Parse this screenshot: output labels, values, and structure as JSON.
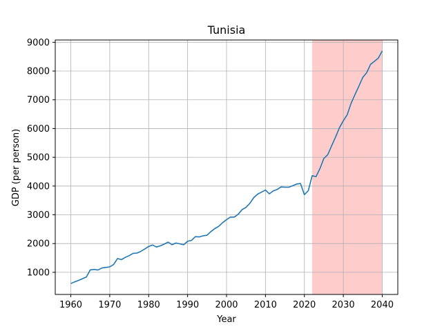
{
  "chart_data": {
    "type": "line",
    "title": "Tunisia",
    "xlabel": "Year",
    "ylabel": "GDP (per person)",
    "xlim": [
      1956,
      2044
    ],
    "ylim": [
      230,
      9080
    ],
    "xticks": [
      1960,
      1970,
      1980,
      1990,
      2000,
      2010,
      2020,
      2030,
      2040
    ],
    "yticks": [
      1000,
      2000,
      3000,
      4000,
      5000,
      6000,
      7000,
      8000,
      9000
    ],
    "grid": true,
    "line_color": "#1f77b4",
    "highlight": {
      "x_start": 2022,
      "x_end": 2040,
      "color": "#ffcccc"
    },
    "series": [
      {
        "x": [
          1960,
          1961,
          1962,
          1963,
          1964,
          1965,
          1966,
          1967,
          1968,
          1969,
          1970,
          1971,
          1972,
          1973,
          1974,
          1975,
          1976,
          1977,
          1978,
          1979,
          1980,
          1981,
          1982,
          1983,
          1984,
          1985,
          1986,
          1987,
          1988,
          1989,
          1990,
          1991,
          1992,
          1993,
          1994,
          1995,
          1996,
          1997,
          1998,
          1999,
          2000,
          2001,
          2002,
          2003,
          2004,
          2005,
          2006,
          2007,
          2008,
          2009,
          2010,
          2011,
          2012,
          2013,
          2014,
          2015,
          2016,
          2017,
          2018,
          2019,
          2020,
          2021,
          2022,
          2023,
          2024,
          2025,
          2026,
          2027,
          2028,
          2029,
          2030,
          2031,
          2032,
          2033,
          2034,
          2035,
          2036,
          2037,
          2038,
          2039,
          2040
        ],
        "y": [
          610,
          670,
          720,
          780,
          840,
          1085,
          1100,
          1080,
          1150,
          1170,
          1190,
          1270,
          1480,
          1440,
          1520,
          1580,
          1660,
          1670,
          1730,
          1810,
          1900,
          1950,
          1880,
          1920,
          1980,
          2050,
          1960,
          2020,
          1990,
          1960,
          2080,
          2110,
          2240,
          2230,
          2270,
          2290,
          2420,
          2520,
          2600,
          2730,
          2830,
          2920,
          2920,
          3020,
          3180,
          3260,
          3400,
          3600,
          3720,
          3790,
          3860,
          3730,
          3830,
          3880,
          3970,
          3960,
          3960,
          4010,
          4070,
          4090,
          3700,
          3840,
          4360,
          4330,
          4610,
          4960,
          5090,
          5400,
          5700,
          6030,
          6270,
          6480,
          6880,
          7180,
          7470,
          7780,
          7940,
          8230,
          8340,
          8450,
          8700
        ]
      }
    ]
  }
}
